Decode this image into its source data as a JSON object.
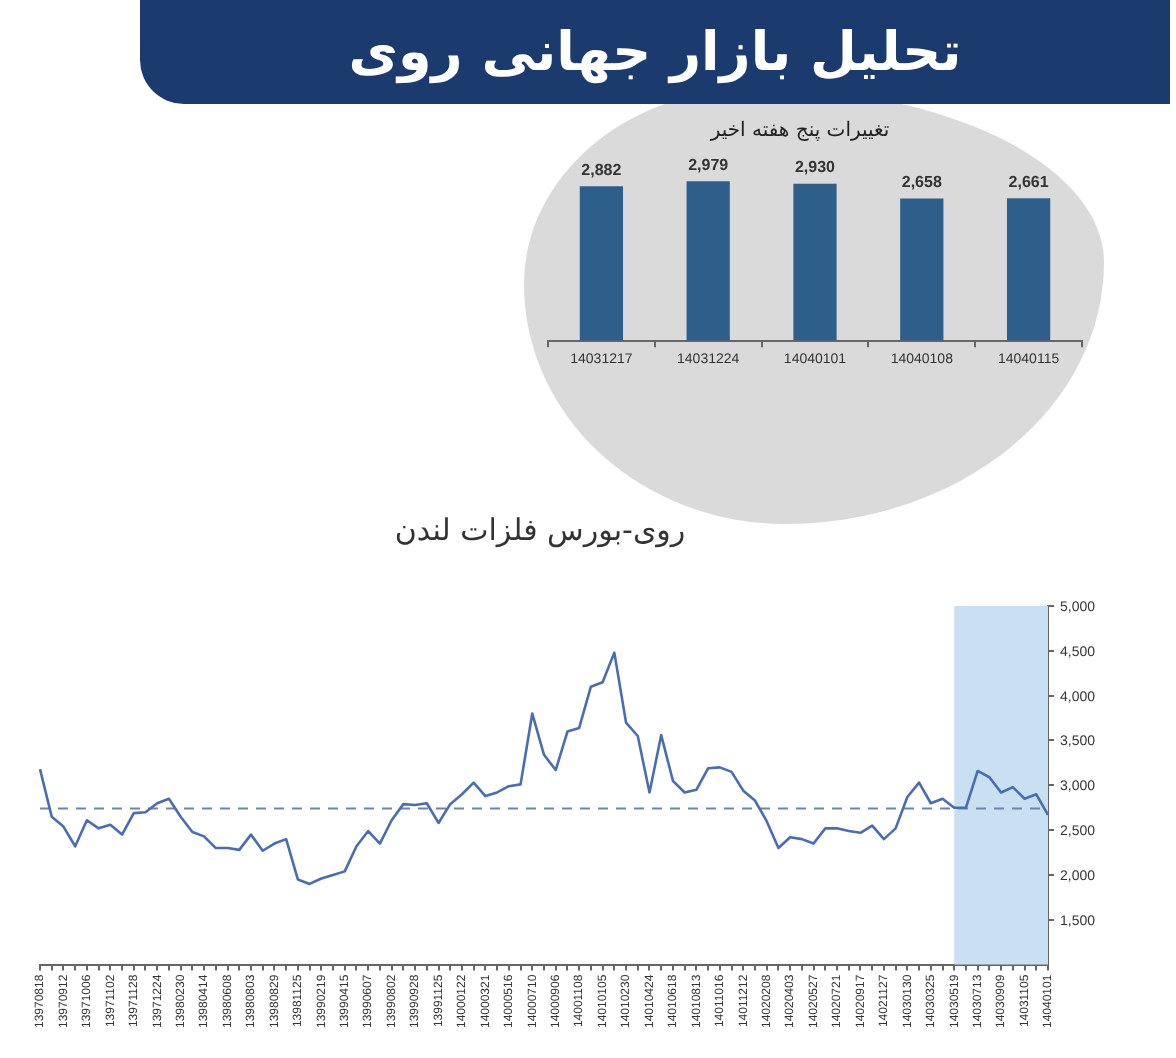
{
  "chart_data": [
    {
      "type": "bar",
      "title": "تحلیل بازار جهانی روی",
      "subtitle": "تغییرات پنج هفته اخیر",
      "categories": [
        "14031217",
        "14031224",
        "14040101",
        "14040108",
        "14040115"
      ],
      "values": [
        2882,
        2979,
        2930,
        2658,
        2661
      ],
      "color": "#2e5f8a",
      "value_labels": [
        "2,882",
        "2,979",
        "2,930",
        "2,658",
        "2,661"
      ],
      "tick_labels": "x"
    },
    {
      "type": "line",
      "subtitle": "روی-بورس فلزات لندن",
      "categories": [
        "13970818",
        null,
        "13970912",
        null,
        "13971006",
        null,
        "13971102",
        null,
        "13971128",
        null,
        "13971224",
        null,
        "13980230",
        null,
        "13980414",
        null,
        "13980608",
        null,
        "13980803",
        null,
        "13980829",
        null,
        "13981125",
        null,
        "13990219",
        null,
        "13990415",
        null,
        "13990607",
        null,
        "13990802",
        null,
        "13990928",
        null,
        "13991125",
        null,
        "14000122",
        null,
        "14000321",
        null,
        "14000516",
        null,
        "14000710",
        null,
        "14000906",
        null,
        "14001108",
        null,
        "14010105",
        null,
        "14010230",
        null,
        "14010424",
        null,
        "14010618",
        null,
        "14010813",
        null,
        "14011016",
        null,
        "14011212",
        null,
        "14020208",
        null,
        "14020403",
        null,
        "14020527",
        null,
        "14020721",
        null,
        "14020917",
        null,
        "14021127",
        null,
        "14030130",
        null,
        "14030325",
        null,
        "14030519",
        null,
        "14030713",
        null,
        "14030909",
        null,
        "14031105",
        null,
        "14040101"
      ],
      "series": [
        {
          "color": "#4a6cb5",
          "values": [
            3180,
            2650,
            2540,
            2320,
            2610,
            2520,
            2560,
            2450,
            2690,
            2700,
            2800,
            2850,
            2650,
            2480,
            2430,
            2300,
            2300,
            2280,
            2450,
            2270,
            2350,
            2400,
            1950,
            1900,
            1960,
            2000,
            2040,
            2320,
            2490,
            2350,
            2610,
            2790,
            2780,
            2800,
            2580,
            2790,
            2900,
            3030,
            2880,
            2920,
            2990,
            3010,
            3800,
            3340,
            3170,
            3600,
            3640,
            4100,
            4150,
            4480,
            3700,
            3550,
            2920,
            3560,
            3050,
            2920,
            2950,
            3190,
            3200,
            3150,
            2940,
            2830,
            2600,
            2300,
            2420,
            2400,
            2350,
            2520,
            2520,
            2490,
            2470,
            2550,
            2400,
            2520,
            2870,
            3030,
            2800,
            2850,
            2750,
            2750,
            3160,
            3090,
            2920,
            2980,
            2850,
            2900,
            2670
          ]
        }
      ],
      "ylim": [
        1000,
        5000
      ],
      "yticks": [
        {
          "value": 1500,
          "label": "1,500"
        },
        {
          "value": 2000,
          "label": "2,000"
        },
        {
          "value": 2500,
          "label": "2,500"
        },
        {
          "value": 3000,
          "label": "3,000"
        },
        {
          "value": 3500,
          "label": "3,500"
        },
        {
          "value": 4000,
          "label": "4,000"
        },
        {
          "value": 4500,
          "label": "4,500"
        },
        {
          "value": 5000,
          "label": "5,000"
        }
      ],
      "marker": "none",
      "line_style": "solid",
      "ref_lines": [
        {
          "axis": "y",
          "value": 2740,
          "color": "#6a85b0",
          "line_style": "dashed"
        }
      ],
      "bands": [
        {
          "axis": "x",
          "from": "14030519",
          "to": "14040101",
          "color": "#c9dff2"
        }
      ]
    }
  ]
}
